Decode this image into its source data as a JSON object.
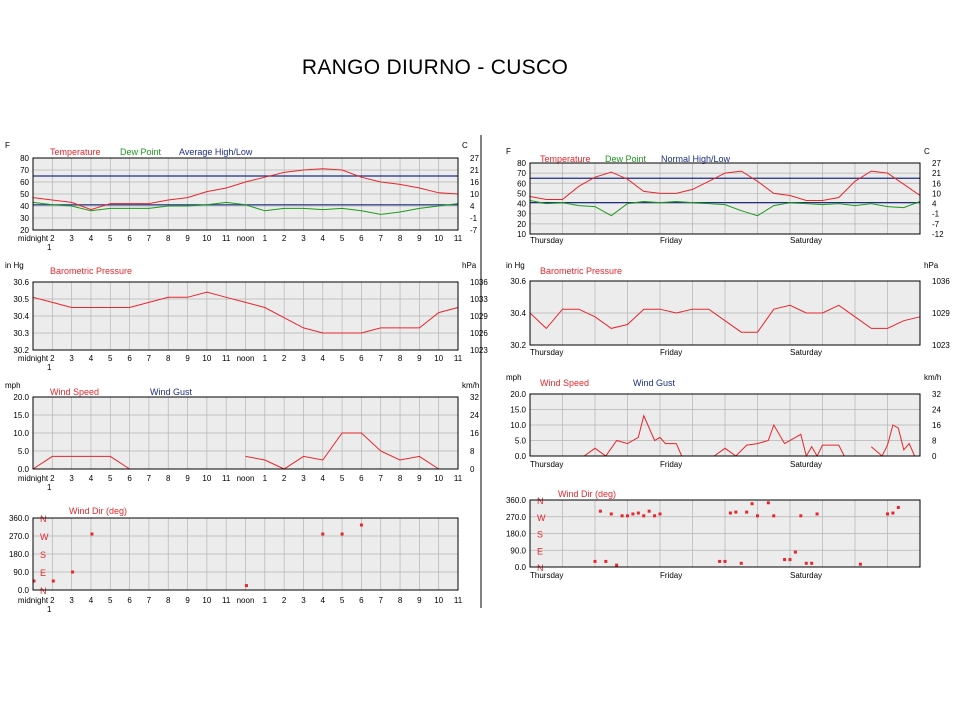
{
  "page": {
    "title": "RANGO DIURNO - CUSCO"
  },
  "colors": {
    "temperature": "#e8262b",
    "dew_point": "#1a9a1a",
    "high_low": "#1c2f82",
    "pressure": "#e8262b",
    "wind_speed": "#e8262b",
    "wind_gust": "#1c2f82",
    "wind_dir": "#e8262b",
    "grid": "#b4b4b4",
    "plot_bg": "#ececec"
  },
  "hour_ticks": [
    "midnight",
    "2",
    "3",
    "4",
    "5",
    "6",
    "7",
    "8",
    "9",
    "10",
    "11",
    "noon",
    "1",
    "2",
    "3",
    "4",
    "5",
    "6",
    "7",
    "8",
    "9",
    "10",
    "11"
  ],
  "hour_ticks_sub": "1",
  "day_ticks": [
    "Thursday",
    "Friday",
    "Saturday"
  ],
  "compass": [
    "N",
    "W",
    "S",
    "E",
    "N"
  ],
  "chart_data": [
    {
      "id": "daily-temperature",
      "type": "line",
      "unit_left": "F",
      "unit_right": "C",
      "legend": [
        "Temperature",
        "Dew Point",
        "Average High/Low"
      ],
      "yticks": [
        80,
        70,
        60,
        50,
        40,
        30,
        20
      ],
      "yticks_right": [
        "27",
        "21",
        "16",
        "10",
        "4",
        "-1",
        "-7"
      ],
      "ylim": [
        20,
        80
      ],
      "x": [
        0,
        1,
        2,
        3,
        4,
        5,
        6,
        7,
        8,
        9,
        10,
        11,
        12,
        13,
        14,
        15,
        16,
        17,
        18,
        19,
        20,
        21,
        22
      ],
      "series": [
        {
          "name": "Temperature",
          "values": [
            47,
            45,
            43,
            37,
            42,
            42,
            42,
            45,
            47,
            52,
            55,
            60,
            64,
            68,
            70,
            71,
            70,
            64,
            60,
            58,
            55,
            51,
            50
          ]
        },
        {
          "name": "Dew Point",
          "values": [
            43,
            41,
            40,
            36,
            38,
            38,
            38,
            40,
            40,
            41,
            43,
            41,
            36,
            38,
            38,
            37,
            38,
            36,
            33,
            35,
            38,
            40,
            42
          ]
        }
      ],
      "average_high": 65,
      "average_low": 41
    },
    {
      "id": "daily-pressure",
      "type": "line",
      "unit_left": "in Hg",
      "unit_right": "hPa",
      "legend": [
        "Barometric Pressure"
      ],
      "yticks": [
        "30.6",
        "30.5",
        "30.4",
        "30.3",
        "30.2"
      ],
      "yticks_right": [
        "1036",
        "1033",
        "1029",
        "1026",
        "1023"
      ],
      "ylim": [
        30.2,
        30.6
      ],
      "x": [
        0,
        1,
        2,
        3,
        4,
        5,
        6,
        7,
        8,
        9,
        10,
        11,
        12,
        13,
        14,
        15,
        16,
        17,
        18,
        19,
        20,
        21,
        22
      ],
      "series": [
        {
          "name": "Barometric Pressure",
          "values": [
            30.51,
            30.48,
            30.45,
            30.45,
            30.45,
            30.45,
            30.48,
            30.51,
            30.51,
            30.54,
            30.51,
            30.48,
            30.45,
            30.39,
            30.33,
            30.3,
            30.3,
            30.3,
            30.33,
            30.33,
            30.33,
            30.42,
            30.45
          ]
        }
      ]
    },
    {
      "id": "daily-wind-speed",
      "type": "line",
      "unit_left": "mph",
      "unit_right": "km/h",
      "legend": [
        "Wind Speed",
        "Wind Gust"
      ],
      "yticks": [
        "20.0",
        "15.0",
        "10.0",
        "5.0",
        "0.0"
      ],
      "yticks_right": [
        "32",
        "24",
        "16",
        "8",
        "0"
      ],
      "ylim": [
        0,
        20
      ],
      "series": [
        {
          "name": "Wind Speed",
          "segments": [
            [
              [
                0,
                0
              ],
              [
                1,
                3.5
              ],
              [
                2,
                3.5
              ],
              [
                3,
                3.5
              ],
              [
                4,
                3.5
              ],
              [
                5,
                0
              ]
            ],
            [
              [
                11,
                3.5
              ],
              [
                12,
                2.5
              ],
              [
                13,
                0
              ],
              [
                14,
                3.5
              ],
              [
                15,
                2.5
              ],
              [
                16,
                10
              ],
              [
                17,
                10
              ],
              [
                18,
                5
              ],
              [
                19,
                2.5
              ],
              [
                20,
                3.5
              ],
              [
                21,
                0
              ]
            ]
          ]
        }
      ]
    },
    {
      "id": "daily-wind-dir",
      "type": "scatter",
      "legend": [
        "Wind Dir (deg)"
      ],
      "yticks": [
        "360.0",
        "270.0",
        "180.0",
        "90.0",
        "0.0"
      ],
      "ylim": [
        0,
        360
      ],
      "series": [
        {
          "name": "Wind Dir (deg)",
          "x": [
            0.05,
            1.05,
            2.05,
            3.05,
            11.05,
            15.0,
            16.0,
            17.0
          ],
          "y": [
            45,
            45,
            90,
            280,
            22,
            280,
            280,
            325
          ]
        }
      ]
    },
    {
      "id": "multi-day-temperature",
      "type": "line",
      "unit_left": "F",
      "unit_right": "C",
      "legend": [
        "Temperature",
        "Dew Point",
        "Normal High/Low"
      ],
      "yticks": [
        80,
        70,
        60,
        50,
        40,
        30,
        20,
        10
      ],
      "yticks_right": [
        "27",
        "21",
        "16",
        "10",
        "4",
        "-1",
        "-7",
        "-12"
      ],
      "ylim": [
        10,
        80
      ],
      "x": [
        0,
        3,
        6,
        9,
        12,
        15,
        18,
        21,
        24,
        27,
        30,
        33,
        36,
        39,
        42,
        45,
        48,
        51,
        54,
        57,
        60,
        63,
        66,
        69,
        72
      ],
      "series": [
        {
          "name": "Temperature",
          "values": [
            47,
            44,
            44,
            57,
            66,
            71,
            64,
            52,
            50,
            50,
            54,
            62,
            70,
            72,
            62,
            50,
            48,
            43,
            43,
            46,
            62,
            72,
            70,
            59,
            48
          ]
        },
        {
          "name": "Dew Point",
          "values": [
            43,
            40,
            41,
            38,
            37,
            28,
            40,
            42,
            41,
            42,
            41,
            40,
            39,
            33,
            28,
            38,
            41,
            40,
            39,
            40,
            38,
            40,
            37,
            36,
            42
          ]
        }
      ],
      "normal_high": 65,
      "normal_low": 41
    },
    {
      "id": "multi-day-pressure",
      "type": "line",
      "unit_left": "in Hg",
      "unit_right": "hPa",
      "legend": [
        "Barometric Pressure"
      ],
      "yticks": [
        "30.6",
        "30.4",
        "30.2"
      ],
      "yticks_right": [
        "1036",
        "1029",
        "1023"
      ],
      "ylim": [
        30.2,
        30.7
      ],
      "x": [
        0,
        3,
        6,
        9,
        12,
        15,
        18,
        21,
        24,
        27,
        30,
        33,
        36,
        39,
        42,
        45,
        48,
        51,
        54,
        57,
        60,
        63,
        66,
        69,
        72
      ],
      "series": [
        {
          "name": "Barometric Pressure",
          "values": [
            30.45,
            30.33,
            30.48,
            30.48,
            30.42,
            30.33,
            30.36,
            30.48,
            30.48,
            30.45,
            30.48,
            30.48,
            30.39,
            30.3,
            30.3,
            30.48,
            30.51,
            30.45,
            30.45,
            30.51,
            30.42,
            30.33,
            30.33,
            30.39,
            30.42
          ]
        }
      ]
    },
    {
      "id": "multi-day-wind-speed",
      "type": "line",
      "unit_left": "mph",
      "unit_right": "km/h",
      "legend": [
        "Wind Speed",
        "Wind Gust"
      ],
      "yticks": [
        "20.0",
        "15.0",
        "10.0",
        "5.0",
        "0.0"
      ],
      "yticks_right": [
        "32",
        "24",
        "16",
        "8",
        "0"
      ],
      "ylim": [
        0,
        20
      ],
      "series": [
        {
          "name": "Wind Speed",
          "segments": [
            [
              [
                10,
                0
              ],
              [
                12,
                2.5
              ],
              [
                14,
                0
              ],
              [
                16,
                5
              ],
              [
                18,
                4
              ],
              [
                20,
                6
              ],
              [
                21,
                13
              ],
              [
                23,
                5
              ],
              [
                24,
                6
              ],
              [
                25,
                4
              ],
              [
                27,
                4
              ],
              [
                28,
                0
              ]
            ],
            [
              [
                34,
                0
              ],
              [
                36,
                2.5
              ],
              [
                38,
                0
              ],
              [
                40,
                3.5
              ],
              [
                42,
                4
              ],
              [
                44,
                5
              ],
              [
                45,
                10
              ],
              [
                47,
                4
              ],
              [
                49,
                6
              ],
              [
                50,
                7
              ],
              [
                51,
                0
              ],
              [
                52,
                3
              ],
              [
                53,
                0
              ],
              [
                54,
                3.5
              ],
              [
                57,
                3.5
              ],
              [
                58,
                0
              ]
            ],
            [
              [
                63,
                3
              ],
              [
                65,
                0
              ],
              [
                66,
                3.5
              ],
              [
                67,
                10
              ],
              [
                68,
                9
              ],
              [
                69,
                2
              ],
              [
                70,
                4
              ],
              [
                71,
                0
              ]
            ]
          ]
        }
      ]
    },
    {
      "id": "multi-day-wind-dir",
      "type": "scatter",
      "legend": [
        "Wind Dir (deg)"
      ],
      "yticks": [
        "360.0",
        "270.0",
        "180.0",
        "90.0",
        "0.0"
      ],
      "ylim": [
        0,
        360
      ],
      "series": [
        {
          "name": "Wind Dir (deg)",
          "x": [
            12,
            13,
            14,
            15,
            16,
            17,
            18,
            19,
            20,
            21,
            22,
            23,
            24,
            35,
            36,
            37,
            38,
            39,
            40,
            41,
            42,
            44,
            45,
            47,
            48,
            49,
            50,
            51,
            52,
            53,
            61,
            66,
            67,
            68
          ],
          "y": [
            30,
            300,
            30,
            285,
            10,
            275,
            275,
            285,
            290,
            275,
            300,
            275,
            285,
            30,
            30,
            290,
            295,
            20,
            295,
            340,
            275,
            345,
            275,
            40,
            40,
            80,
            275,
            20,
            20,
            285,
            15,
            285,
            290,
            320
          ]
        }
      ]
    }
  ]
}
